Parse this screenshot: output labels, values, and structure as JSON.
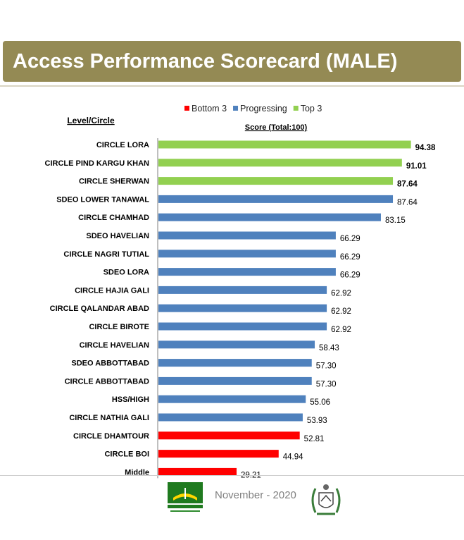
{
  "header": {
    "title": "Access Performance Scorecard (MALE)"
  },
  "footer": {
    "date": "November - 2020"
  },
  "colors": {
    "bottom": "#ff0000",
    "progress": "#4f81bd",
    "top": "#92d050",
    "title_bg": "#948a54"
  },
  "icons": {
    "left_logo": "kpesed-logo-icon",
    "right_logo": "kp-government-emblem-icon"
  },
  "chart_data": {
    "type": "bar",
    "orientation": "horizontal",
    "row_header": "Level/Circle",
    "xlabel": "Score (Total:100)",
    "xlim": [
      0,
      100
    ],
    "grid": false,
    "legend": [
      {
        "label": "Bottom 3",
        "color": "#ff0000"
      },
      {
        "label": "Progressing",
        "color": "#4f81bd"
      },
      {
        "label": "Top 3",
        "color": "#92d050"
      }
    ],
    "legend_position": "top",
    "categories": [
      "CIRCLE LORA",
      "CIRCLE PIND KARGU KHAN",
      "CIRCLE SHERWAN",
      "SDEO LOWER TANAWAL",
      "CIRCLE CHAMHAD",
      "SDEO HAVELIAN",
      "CIRCLE NAGRI TUTIAL",
      "SDEO LORA",
      "CIRCLE HAJIA GALI",
      "CIRCLE QALANDAR ABAD",
      "CIRCLE BIROTE",
      "CIRCLE HAVELIAN",
      "SDEO ABBOTTABAD",
      "CIRCLE ABBOTTABAD",
      "HSS/HIGH",
      "CIRCLE NATHIA GALI",
      "CIRCLE DHAMTOUR",
      "CIRCLE BOI",
      "Middle"
    ],
    "values": [
      94.38,
      91.01,
      87.64,
      87.64,
      83.15,
      66.29,
      66.29,
      66.29,
      62.92,
      62.92,
      62.92,
      58.43,
      57.3,
      57.3,
      55.06,
      53.93,
      52.81,
      44.94,
      29.21
    ],
    "value_labels": [
      "94.38",
      "91.01",
      "87.64",
      "87.64",
      "83.15",
      "66.29",
      "66.29",
      "66.29",
      "62.92",
      "62.92",
      "62.92",
      "58.43",
      "57.30",
      "57.30",
      "55.06",
      "53.93",
      "52.81",
      "44.94",
      "29.21"
    ],
    "groups": [
      "top",
      "top",
      "top",
      "progress",
      "progress",
      "progress",
      "progress",
      "progress",
      "progress",
      "progress",
      "progress",
      "progress",
      "progress",
      "progress",
      "progress",
      "progress",
      "bottom",
      "bottom",
      "bottom"
    ]
  }
}
